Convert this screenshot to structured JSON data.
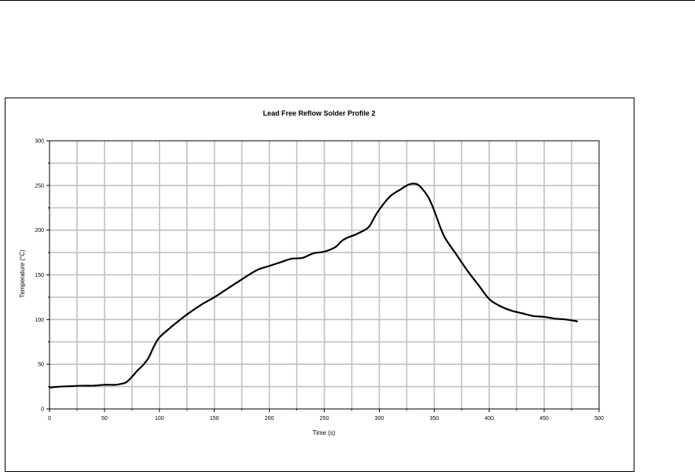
{
  "chart_data": {
    "type": "line",
    "title": "Lead Free Reflow Solder Profile 2",
    "xlabel": "Time (s)",
    "ylabel": "Temperature (°C)",
    "xlim": [
      0,
      500
    ],
    "ylim": [
      0,
      300
    ],
    "x_ticks": [
      0,
      50,
      100,
      150,
      200,
      250,
      300,
      350,
      400,
      450,
      500
    ],
    "y_ticks": [
      0,
      50,
      100,
      150,
      200,
      250,
      300
    ],
    "grid": true,
    "line_color": "#000000",
    "grid_color": "#c0c0c0",
    "series": [
      {
        "x": [
          0,
          10,
          20,
          30,
          40,
          50,
          60,
          65,
          70,
          75,
          80,
          85,
          90,
          95,
          100,
          110,
          120,
          130,
          140,
          150,
          160,
          170,
          180,
          190,
          200,
          210,
          220,
          230,
          240,
          250,
          260,
          265,
          270,
          280,
          290,
          295,
          300,
          310,
          320,
          325,
          330,
          335,
          340,
          345,
          350,
          355,
          360,
          370,
          380,
          390,
          400,
          410,
          420,
          430,
          440,
          450,
          460,
          470,
          480
        ],
        "y": [
          24,
          25,
          25.5,
          26,
          26,
          27,
          27,
          28,
          30,
          36,
          43,
          49,
          57,
          70,
          80,
          91,
          101,
          110,
          118,
          125,
          133,
          141,
          149,
          156,
          160,
          164,
          168,
          169,
          174,
          176,
          181,
          187,
          191,
          196,
          203,
          213,
          223,
          238,
          246,
          250,
          252,
          251,
          245,
          236,
          222,
          205,
          191,
          173,
          155,
          139,
          123,
          115,
          110,
          107,
          104,
          103,
          101,
          100,
          98
        ]
      }
    ]
  }
}
